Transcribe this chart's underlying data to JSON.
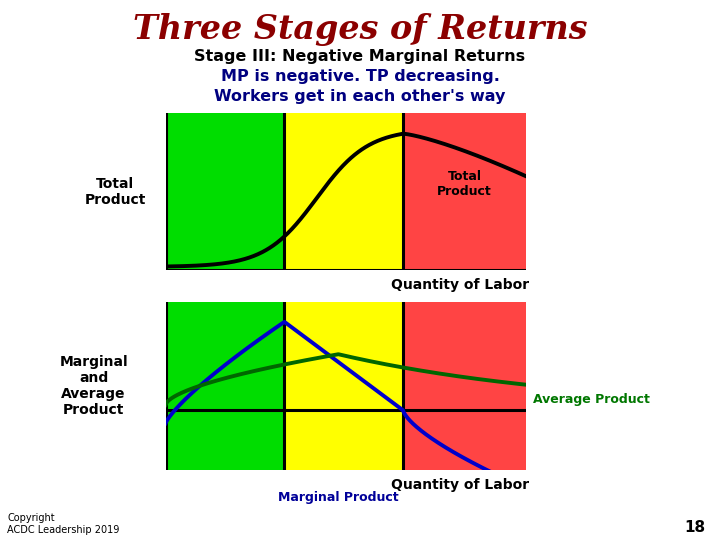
{
  "title": "Three Stages of Returns",
  "title_color": "#8B0000",
  "subtitle1": "Stage III: Negative Marginal Returns",
  "subtitle2": "MP is negative. TP decreasing.",
  "subtitle3": "Workers get in each other's way",
  "subtitle_color": "#000080",
  "background_color": "#ffffff",
  "stage_colors": [
    "#00dd00",
    "#ffff00",
    "#ff4444"
  ],
  "s1": 0.33,
  "s2": 0.66,
  "top_ylabel": "Total\nProduct",
  "top_xlabel": "Quantity of Labor",
  "bot_ylabel": "Marginal\nand\nAverage\nProduct",
  "bot_xlabel": "Quantity of Labor",
  "label_total_product": "Total\nProduct",
  "label_avg_product": "Average Product",
  "label_avg_product_color": "#007700",
  "label_marg_product": "Marginal Product",
  "label_marg_product_color": "#000099",
  "tp_color": "#000000",
  "mp_color": "#0000cc",
  "ap_color": "#006600",
  "copyright": "Copyright\nACDC Leadership 2019",
  "page_number": "18"
}
